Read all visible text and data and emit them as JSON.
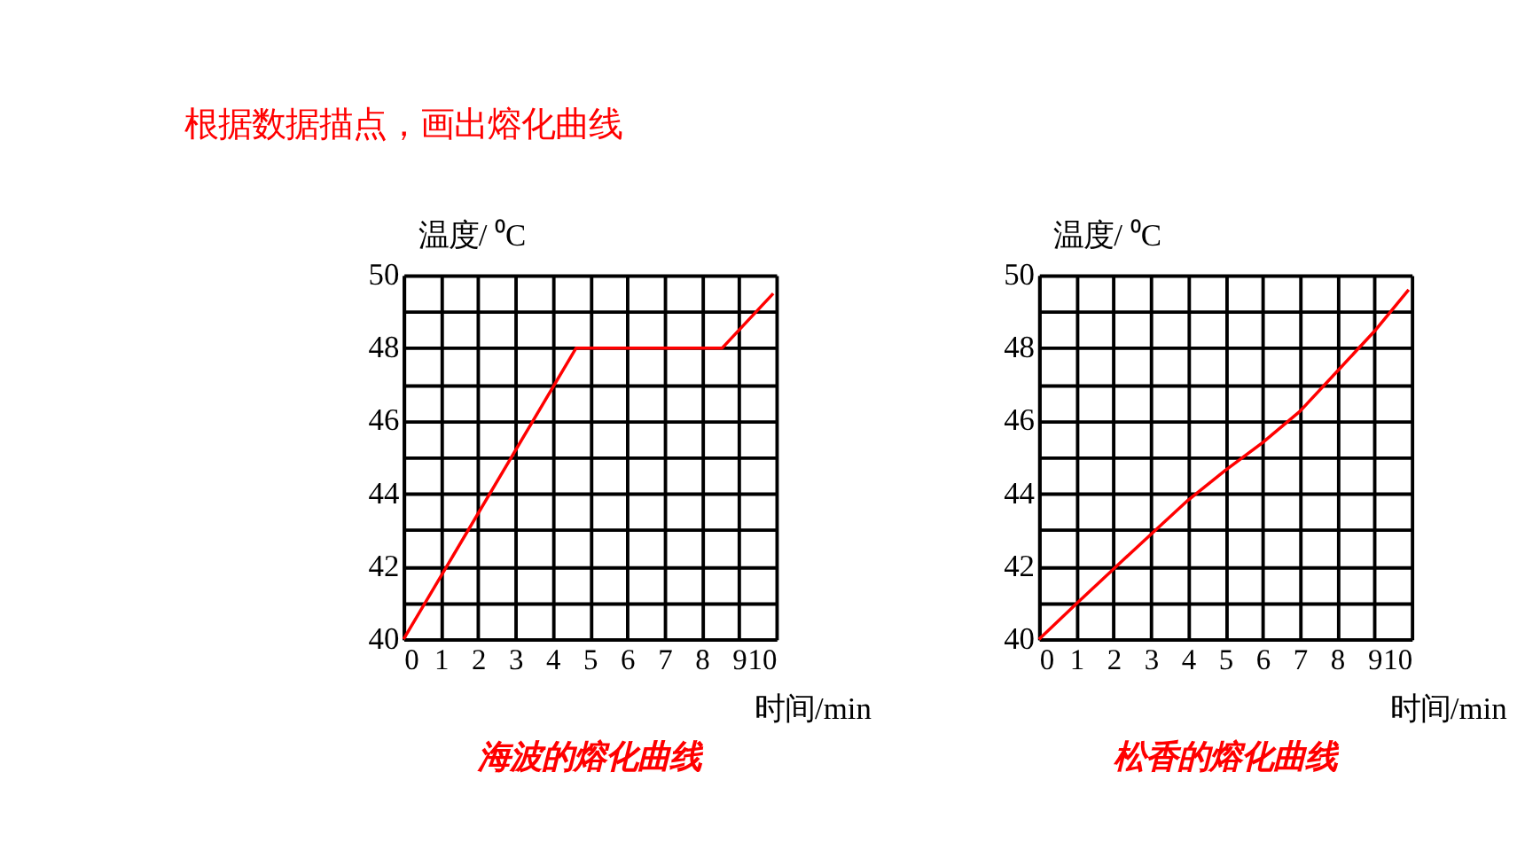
{
  "chart_data": [
    {
      "type": "line",
      "title": "海波的熔化曲线",
      "annotations": [
        "根据数据描点，画出熔化曲线"
      ],
      "xlabel": "时间/min",
      "ylabel": "温度/ ⁰C",
      "series": [
        {
          "color": "#ff0000",
          "x": [
            0,
            4.63,
            8.55,
            9.92
          ],
          "values": [
            40,
            48,
            48,
            49.5
          ]
        }
      ],
      "xlim": [
        0,
        10
      ],
      "xticks": [
        0,
        1,
        2,
        3,
        4,
        5,
        6,
        7,
        8,
        9,
        10
      ],
      "ylim": [
        40,
        50
      ],
      "yticks": [
        40,
        {
          "value": 41,
          "label": null
        },
        42,
        {
          "value": 43,
          "label": null
        },
        44,
        {
          "value": 45,
          "label": null
        },
        46,
        {
          "value": 47,
          "label": null
        },
        48,
        {
          "value": 49,
          "label": null
        },
        50
      ],
      "grid": true,
      "marker": "none",
      "line_style": "solid"
    },
    {
      "type": "line",
      "title": "松香的熔化曲线",
      "xlabel": "时间/min",
      "ylabel": "温度/ ⁰C",
      "series": [
        {
          "color": "#ff0000",
          "x": [
            0,
            1,
            2,
            3,
            4,
            5,
            6,
            7,
            8,
            9,
            9.92
          ],
          "values": [
            40,
            40.97,
            41.93,
            42.88,
            43.82,
            44.64,
            45.4,
            46.26,
            47.36,
            48.46,
            49.6
          ]
        }
      ],
      "xlim": [
        0,
        10
      ],
      "xticks": [
        0,
        1,
        2,
        3,
        4,
        5,
        6,
        7,
        8,
        9,
        10
      ],
      "ylim": [
        40,
        50
      ],
      "yticks": [
        40,
        {
          "value": 41,
          "label": null
        },
        42,
        {
          "value": 43,
          "label": null
        },
        44,
        {
          "value": 45,
          "label": null
        },
        46,
        {
          "value": 47,
          "label": null
        },
        48,
        {
          "value": 49,
          "label": null
        },
        50
      ],
      "grid": true,
      "marker": "none",
      "line_style": "solid"
    }
  ]
}
